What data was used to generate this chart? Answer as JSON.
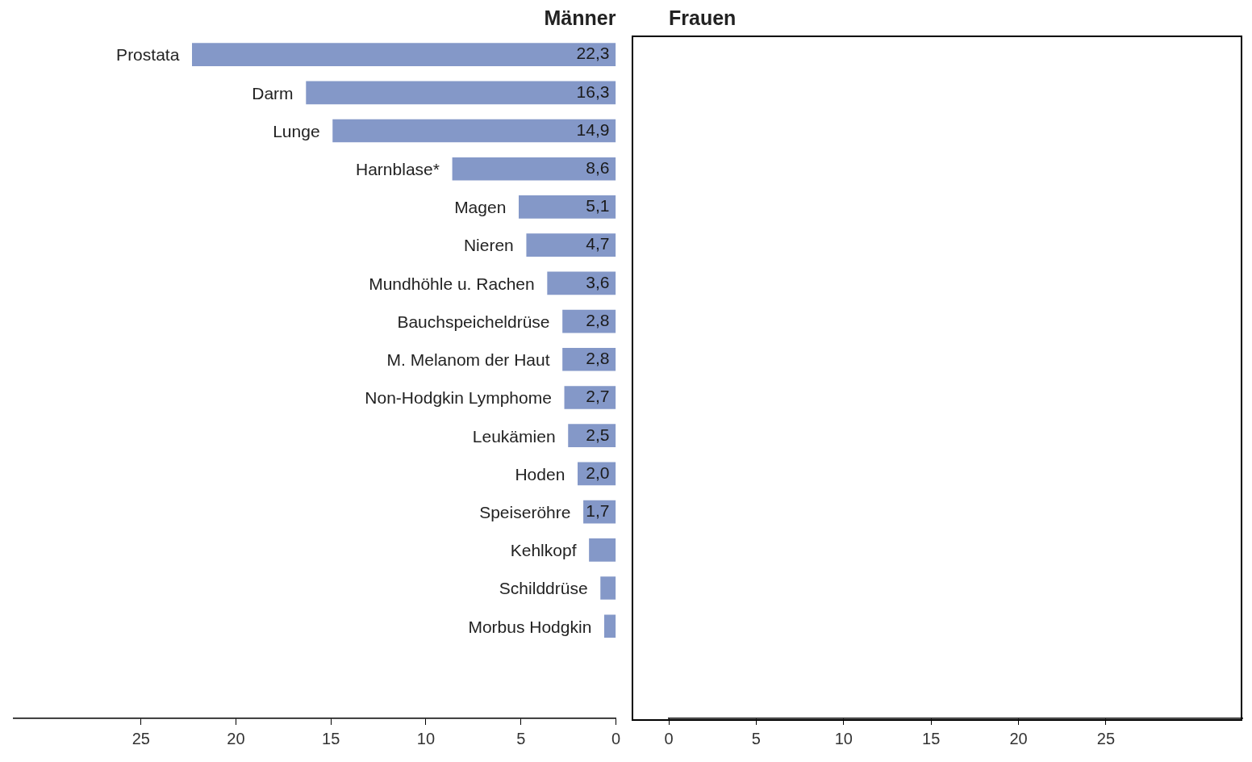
{
  "chart_data": [
    {
      "type": "bar",
      "orientation": "horizontal",
      "title": "Männer",
      "categories": [
        "Prostata",
        "Darm",
        "Lunge",
        "Harnblase*",
        "Magen",
        "Nieren",
        "Mundhöhle u. Rachen",
        "Bauchspeicheldrüse",
        "M. Melanom der Haut",
        "Non-Hodgkin Lymphome",
        "Leukämien",
        "Hoden",
        "Speiseröhre",
        "Kehlkopf",
        "Schilddrüse",
        "Morbus Hodgkin"
      ],
      "values": [
        22.3,
        16.3,
        14.9,
        8.6,
        5.1,
        4.7,
        3.6,
        2.8,
        2.8,
        2.7,
        2.5,
        2.0,
        1.7,
        1.4,
        0.8,
        0.6
      ],
      "value_labels": [
        "22,3",
        "16,3",
        "14,9",
        "8,6",
        "5,1",
        "4,7",
        "3,6",
        "2,8",
        "2,8",
        "2,7",
        "2,5",
        "2,0",
        "1,7",
        null,
        null,
        null
      ],
      "color": "#8498c8",
      "xlim": [
        31.7,
        0
      ],
      "xticks": [
        25,
        20,
        15,
        10,
        5,
        0
      ],
      "grid": false,
      "legend": false
    },
    {
      "type": "bar",
      "orientation": "horizontal",
      "title": "Frauen",
      "categories": [
        null,
        null,
        null,
        null,
        null,
        null,
        null,
        null,
        null,
        null,
        null,
        null,
        null,
        null,
        null,
        null
      ],
      "values": [
        null,
        null,
        null,
        null,
        null,
        null,
        null,
        null,
        null,
        null,
        null,
        null,
        null,
        null,
        null,
        null
      ],
      "color": "#8498c8",
      "xlim": [
        0,
        32.8
      ],
      "xticks": [
        0,
        5,
        10,
        15,
        20,
        25
      ],
      "grid": false,
      "legend": false,
      "tick_labels": "x"
    }
  ]
}
